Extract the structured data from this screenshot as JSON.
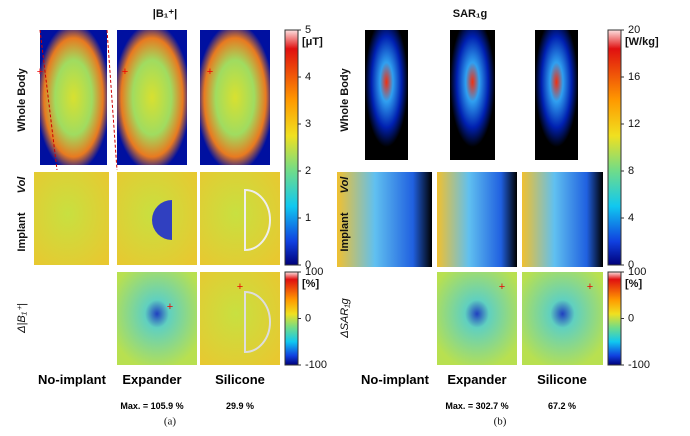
{
  "panels": [
    {
      "title": "|B₁⁺|",
      "caption": "(a)",
      "row_labels": [
        "Whole Body",
        "Implant",
        "Vol",
        "Δ|B₁⁺|"
      ],
      "columns": [
        {
          "label": "No-implant",
          "note": null
        },
        {
          "label": "Expander",
          "note": "Max. = 105.9 %"
        },
        {
          "label": "Silicone",
          "note": "29.9 %"
        }
      ],
      "colorbar": {
        "unit": "[μT]",
        "lim": [
          0,
          5
        ],
        "ticks": [
          5,
          4,
          3,
          2,
          1,
          0
        ]
      },
      "diff_colorbar": {
        "unit": "[%]",
        "lim": [
          -100,
          100
        ],
        "ticks": [
          100,
          0,
          -100
        ]
      }
    },
    {
      "title": "SAR₁g",
      "caption": "(b)",
      "row_labels": [
        "Whole Body",
        "Implant",
        "Vol",
        "ΔSAR₁g"
      ],
      "columns": [
        {
          "label": "No-implant",
          "note": null
        },
        {
          "label": "Expander",
          "note": "Max. = 302.7 %"
        },
        {
          "label": "Silicone",
          "note": "67.2 %"
        }
      ],
      "colorbar": {
        "unit": "[W/kg]",
        "lim": [
          0,
          20
        ],
        "ticks": [
          20,
          16,
          12,
          8,
          4,
          0
        ]
      },
      "diff_colorbar": {
        "unit": "[%]",
        "lim": [
          -100,
          100
        ],
        "ticks": [
          100,
          0,
          -100
        ]
      }
    }
  ]
}
